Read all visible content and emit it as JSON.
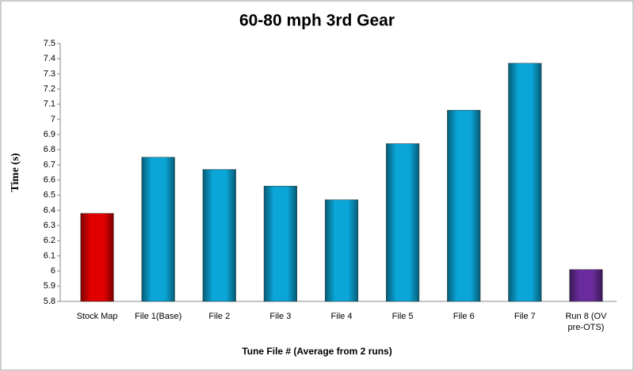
{
  "chart_data": {
    "type": "bar",
    "title": "60-80 mph 3rd Gear",
    "x_label": "Tune File # (Average from 2 runs)",
    "y_label": "Time (s)",
    "categories": [
      "Stock Map",
      "File 1(Base)",
      "File 2",
      "File 3",
      "File 4",
      "File 5",
      "File 6",
      "File 7",
      "Run 8 (OV pre-OTS)"
    ],
    "values": [
      6.38,
      6.75,
      6.67,
      6.56,
      6.47,
      6.84,
      7.06,
      7.37,
      6.01
    ],
    "colors": [
      "#e00000",
      "#0aa6d8",
      "#0aa6d8",
      "#0aa6d8",
      "#0aa6d8",
      "#0aa6d8",
      "#0aa6d8",
      "#0aa6d8",
      "#6a2c9c"
    ],
    "ylim": [
      5.8,
      7.5
    ],
    "yticks": [
      5.8,
      5.9,
      6,
      6.1,
      6.2,
      6.3,
      6.4,
      6.5,
      6.6,
      6.7,
      6.8,
      6.9,
      7,
      7.1,
      7.2,
      7.3,
      7.4,
      7.5
    ],
    "grid": false
  }
}
